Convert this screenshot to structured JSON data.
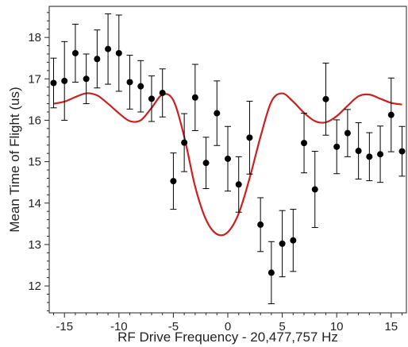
{
  "chart_data": {
    "type": "scatter",
    "title": "",
    "xlabel": "RF Drive Frequency - 20,477,757 Hz",
    "ylabel": "Mean Time of Flight (us)",
    "xlim": [
      -16.4,
      16.4
    ],
    "ylim": [
      11.35,
      18.75
    ],
    "xticks": [
      -15,
      -10,
      -5,
      0,
      5,
      10,
      15
    ],
    "yticks": [
      12,
      13,
      14,
      15,
      16,
      17,
      18
    ],
    "grid": false,
    "legend": "none",
    "colors": {
      "points": "#000000",
      "fit": "#cc1f1f",
      "axes": "#222222"
    },
    "series": [
      {
        "kind": "points-with-error-bars",
        "points": [
          {
            "x": -16.0,
            "y": 16.9,
            "err": 0.6
          },
          {
            "x": -15.0,
            "y": 16.95,
            "err": 0.95
          },
          {
            "x": -14.0,
            "y": 17.62,
            "err": 0.7
          },
          {
            "x": -13.0,
            "y": 17.0,
            "err": 0.6
          },
          {
            "x": -12.0,
            "y": 17.48,
            "err": 0.7
          },
          {
            "x": -11.0,
            "y": 17.72,
            "err": 0.85
          },
          {
            "x": -10.0,
            "y": 17.62,
            "err": 0.92
          },
          {
            "x": -9.0,
            "y": 16.92,
            "err": 0.65
          },
          {
            "x": -8.0,
            "y": 16.82,
            "err": 0.62
          },
          {
            "x": -7.0,
            "y": 16.52,
            "err": 0.55
          },
          {
            "x": -6.0,
            "y": 16.66,
            "err": 0.58
          },
          {
            "x": -5.0,
            "y": 14.53,
            "err": 0.68
          },
          {
            "x": -4.0,
            "y": 15.46,
            "err": 0.7
          },
          {
            "x": -3.0,
            "y": 16.55,
            "err": 0.8
          },
          {
            "x": -2.0,
            "y": 14.97,
            "err": 0.62
          },
          {
            "x": -1.0,
            "y": 16.17,
            "err": 0.78
          },
          {
            "x": 0.0,
            "y": 15.07,
            "err": 0.78
          },
          {
            "x": 1.0,
            "y": 14.45,
            "err": 0.67
          },
          {
            "x": 2.0,
            "y": 15.58,
            "err": 0.88
          },
          {
            "x": 3.0,
            "y": 13.48,
            "err": 0.65
          },
          {
            "x": 4.0,
            "y": 12.32,
            "err": 0.75
          },
          {
            "x": 5.0,
            "y": 13.02,
            "err": 0.8
          },
          {
            "x": 6.0,
            "y": 13.1,
            "err": 0.75
          },
          {
            "x": 7.0,
            "y": 15.45,
            "err": 0.72
          },
          {
            "x": 8.0,
            "y": 14.33,
            "err": 0.92
          },
          {
            "x": 9.0,
            "y": 16.51,
            "err": 0.87
          },
          {
            "x": 10.0,
            "y": 15.36,
            "err": 0.65
          },
          {
            "x": 11.0,
            "y": 15.69,
            "err": 0.57
          },
          {
            "x": 12.0,
            "y": 15.26,
            "err": 0.68
          },
          {
            "x": 13.0,
            "y": 15.12,
            "err": 0.58
          },
          {
            "x": 14.0,
            "y": 15.18,
            "err": 0.68
          },
          {
            "x": 15.0,
            "y": 16.13,
            "err": 0.89
          },
          {
            "x": 16.0,
            "y": 15.25,
            "err": 0.6
          }
        ]
      },
      {
        "kind": "fit-line",
        "x": [
          -16,
          -15,
          -14,
          -13,
          -12,
          -11,
          -10,
          -9,
          -8,
          -7,
          -6,
          -5,
          -4,
          -3,
          -2,
          -1,
          0,
          1,
          2,
          3,
          4,
          5,
          6,
          7,
          8,
          9,
          10,
          11,
          12,
          13,
          14,
          15,
          16
        ],
        "y": [
          16.4,
          16.45,
          16.56,
          16.65,
          16.6,
          16.4,
          16.17,
          15.98,
          16.0,
          16.3,
          16.62,
          16.48,
          15.6,
          14.4,
          13.6,
          13.25,
          13.3,
          13.75,
          14.6,
          15.6,
          16.45,
          16.65,
          16.45,
          16.18,
          15.98,
          15.95,
          16.1,
          16.35,
          16.58,
          16.62,
          16.52,
          16.42,
          16.38
        ]
      }
    ]
  }
}
